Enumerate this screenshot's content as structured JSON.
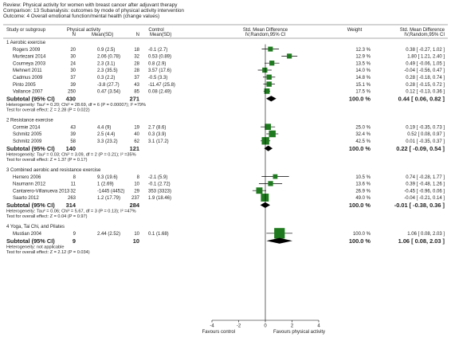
{
  "header": {
    "review": "Review:  Physical activity for women with breast cancer after adjuvant therapy",
    "comparison": "Comparison:  13 Subanalysis: outcomes by mode of physical activity intervention",
    "outcome": "Outcome:  4 Overall emotional function/mental health (change values)"
  },
  "columns": {
    "study": "Study or subgroup",
    "pa_group": "Physical activity",
    "control_group": "Control",
    "n": "N",
    "mean_sd": "Mean(SD)",
    "smd": "Std. Mean Difference",
    "smd_method": "IV,Random,95% CI",
    "weight": "Weight",
    "smd_right": "Std. Mean Difference",
    "smd_right_method": "IV,Random,95% CI"
  },
  "colors": {
    "marker": "#1f7a1f",
    "diamond": "#000000",
    "line": "#000000"
  },
  "chart_data": {
    "type": "forest",
    "xlim": [
      -4,
      4
    ],
    "ticks": [
      -4,
      -2,
      0,
      2,
      4
    ],
    "tick_labels": [
      "-4",
      "-2",
      "0",
      "2",
      "4"
    ],
    "favours_left": "Favours control",
    "favours_right": "Favours physical activity",
    "subgroups": [
      {
        "label": "1 Aerobic exercise",
        "studies": [
          {
            "name": "Rogers 2009",
            "n1": "20",
            "msd1": "0.9 (2.5)",
            "n2": "18",
            "msd2": "-0.1 (2.7)",
            "weight": "12.3 %",
            "ci": "0.38 [ -0.27, 1.02 ]",
            "est": 0.38,
            "lo": -0.27,
            "hi": 1.02,
            "w": 12.3
          },
          {
            "name": "Murtezani 2014",
            "n1": "30",
            "msd1": "2.06 (0.78)",
            "n2": "32",
            "msd2": "0.53 (0.89)",
            "weight": "12.9 %",
            "ci": "1.80 [ 1.21, 2.40 ]",
            "est": 1.8,
            "lo": 1.21,
            "hi": 2.4,
            "w": 12.9
          },
          {
            "name": "Courneya 2003",
            "n1": "24",
            "msd1": "2.3 (3.1)",
            "n2": "28",
            "msd2": "0.8 (2.9)",
            "weight": "13.5 %",
            "ci": "0.49 [ -0.06, 1.05 ]",
            "est": 0.49,
            "lo": -0.06,
            "hi": 1.05,
            "w": 13.5
          },
          {
            "name": "Mehnert 2011",
            "n1": "30",
            "msd1": "2.3 (35.5)",
            "n2": "28",
            "msd2": "3.57 (17.6)",
            "weight": "14.0 %",
            "ci": "-0.04 [ -0.56, 0.47 ]",
            "est": -0.04,
            "lo": -0.56,
            "hi": 0.47,
            "w": 14.0
          },
          {
            "name": "Cadmus 2009",
            "n1": "37",
            "msd1": "0.3 (2.2)",
            "n2": "37",
            "msd2": "-0.5 (3.3)",
            "weight": "14.8 %",
            "ci": "0.28 [ -0.18, 0.74 ]",
            "est": 0.28,
            "lo": -0.18,
            "hi": 0.74,
            "w": 14.8
          },
          {
            "name": "Pinto 2005",
            "n1": "39",
            "msd1": "-3.8 (27.7)",
            "n2": "43",
            "msd2": "-11.47 (25.8)",
            "weight": "15.1 %",
            "ci": "0.28 [ -0.15, 0.72 ]",
            "est": 0.28,
            "lo": -0.15,
            "hi": 0.72,
            "w": 15.1
          },
          {
            "name": "Vallance 2007",
            "n1": "250",
            "msd1": "0.47 (3.54)",
            "n2": "85",
            "msd2": "0.08 (2.49)",
            "weight": "17.5 %",
            "ci": "0.12 [ -0.13, 0.36 ]",
            "est": 0.12,
            "lo": -0.13,
            "hi": 0.36,
            "w": 17.5
          }
        ],
        "total": {
          "label": "Subtotal (95% CI)",
          "n1": "430",
          "n2": "271",
          "weight": "100.0 %",
          "ci": "0.44 [ 0.06, 0.82 ]",
          "est": 0.44,
          "lo": 0.06,
          "hi": 0.82
        },
        "heterogeneity": "Heterogeneity: Tau² = 0.20; Chi² = 28.69, df = 6 (P = 0.00007); I² =79%",
        "overall_test": "Test for overall effect: Z = 2.28 (P = 0.022)"
      },
      {
        "label": "2 Resistance exercise",
        "studies": [
          {
            "name": "Cormie 2014",
            "n1": "43",
            "msd1": "4.4 (9)",
            "n2": "19",
            "msd2": "2.7 (8.6)",
            "weight": "25.0 %",
            "ci": "0.19 [ -0.35, 0.73 ]",
            "est": 0.19,
            "lo": -0.35,
            "hi": 0.73,
            "w": 25.0
          },
          {
            "name": "Schmitz 2005",
            "n1": "39",
            "msd1": "2.5 (4.4)",
            "n2": "40",
            "msd2": "0.3 (3.9)",
            "weight": "32.4 %",
            "ci": "0.52 [ 0.08, 0.97 ]",
            "est": 0.52,
            "lo": 0.08,
            "hi": 0.97,
            "w": 32.4
          },
          {
            "name": "Schmitz 2009",
            "n1": "58",
            "msd1": "3.3 (23.2)",
            "n2": "62",
            "msd2": "3.1 (17.2)",
            "weight": "42.5 %",
            "ci": "0.01 [ -0.35, 0.37 ]",
            "est": 0.01,
            "lo": -0.35,
            "hi": 0.37,
            "w": 42.5
          }
        ],
        "total": {
          "label": "Subtotal (95% CI)",
          "n1": "140",
          "n2": "121",
          "weight": "100.0 %",
          "ci": "0.22 [ -0.09, 0.54 ]",
          "est": 0.22,
          "lo": -0.09,
          "hi": 0.54
        },
        "heterogeneity": "Heterogeneity: Tau² = 0.03; Chi² = 3.09, df = 2 (P = 0.21); I² =35%",
        "overall_test": "Test for overall effect: Z = 1.37 (P = 0.17)"
      },
      {
        "label": "3 Combined aerobic and resistance exercise",
        "studies": [
          {
            "name": "Herrero 2006",
            "n1": "8",
            "msd1": "9.3 (19.6)",
            "n2": "8",
            "msd2": "-2.1 (5.9)",
            "weight": "10.5 %",
            "ci": "0.74 [ -0.28, 1.77 ]",
            "est": 0.74,
            "lo": -0.28,
            "hi": 1.77,
            "w": 10.5
          },
          {
            "name": "Naumann 2012",
            "n1": "11",
            "msd1": "1 (2.69)",
            "n2": "10",
            "msd2": "-0.1 (2.72)",
            "weight": "13.6 %",
            "ci": "0.39 [ -0.48, 1.26 ]",
            "est": 0.39,
            "lo": -0.48,
            "hi": 1.26,
            "w": 13.6
          },
          {
            "name": "Cantarero-Villanueva 2013",
            "n1": "32",
            "msd1": "-1445 (4452)",
            "n2": "29",
            "msd2": "353 (3323)",
            "weight": "26.9 %",
            "ci": "-0.45 [ -0.96, 0.06 ]",
            "est": -0.45,
            "lo": -0.96,
            "hi": 0.06,
            "w": 26.9
          },
          {
            "name": "Saarto 2012",
            "n1": "263",
            "msd1": "1.2 (17.79)",
            "n2": "237",
            "msd2": "1.9 (18.46)",
            "weight": "49.0 %",
            "ci": "-0.04 [ -0.21, 0.14 ]",
            "est": -0.04,
            "lo": -0.21,
            "hi": 0.14,
            "w": 49.0
          }
        ],
        "total": {
          "label": "Subtotal (95% CI)",
          "n1": "314",
          "n2": "284",
          "weight": "100.0 %",
          "ci": "-0.01 [ -0.38, 0.36 ]",
          "est": -0.01,
          "lo": -0.38,
          "hi": 0.36
        },
        "heterogeneity": "Heterogeneity: Tau² = 0.06; Chi² = 5.67, df = 3 (P = 0.13); I² =47%",
        "overall_test": "Test for overall effect: Z = 0.04 (P = 0.97)"
      },
      {
        "label": "4 Yoga, Tai Chi, and Pilates",
        "studies": [
          {
            "name": "Mustian 2004",
            "n1": "9",
            "msd1": "2.44 (2.52)",
            "n2": "10",
            "msd2": "0.1 (1.68)",
            "weight": "100.0 %",
            "ci": "1.06 [ 0.08, 2.03 ]",
            "est": 1.06,
            "lo": 0.08,
            "hi": 2.03,
            "w": 100.0
          }
        ],
        "total": {
          "label": "Subtotal (95% CI)",
          "n1": "9",
          "n2": "10",
          "weight": "100.0 %",
          "ci": "1.06 [ 0.08, 2.03 ]",
          "est": 1.06,
          "lo": 0.08,
          "hi": 2.03
        },
        "heterogeneity": "Heterogeneity: not applicable",
        "overall_test": "Test for overall effect: Z = 2.12 (P = 0.034)"
      }
    ]
  }
}
